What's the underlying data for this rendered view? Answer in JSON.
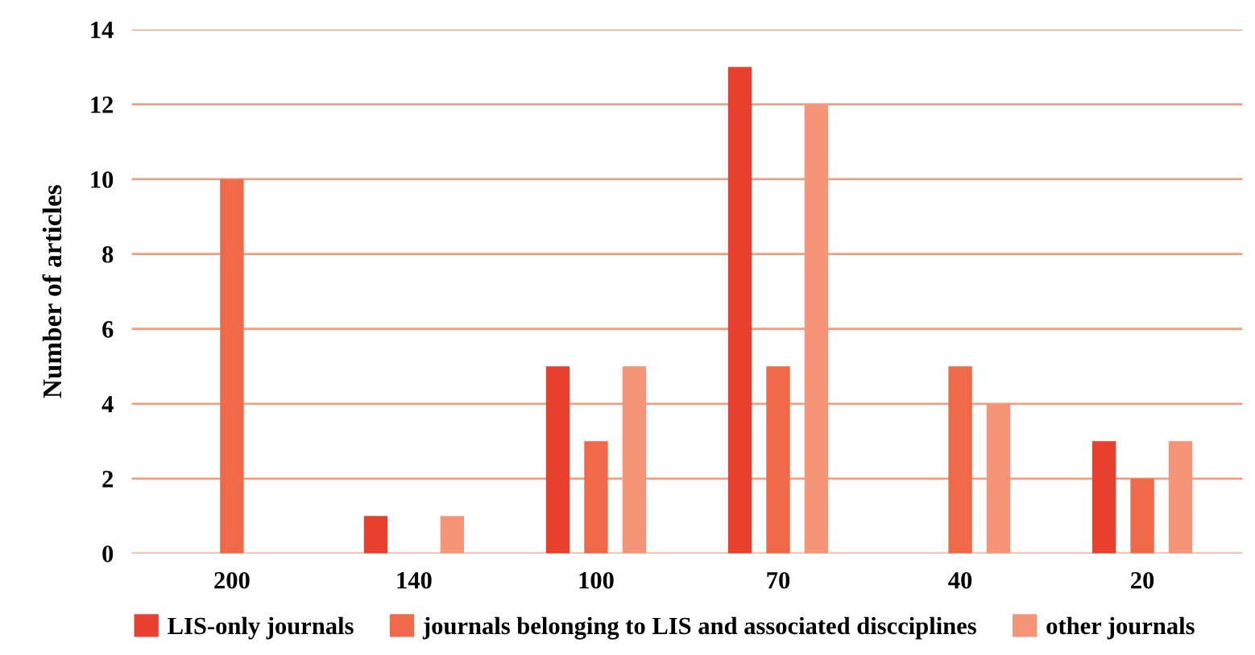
{
  "chart_data": {
    "type": "bar",
    "ylabel": "Number of articles",
    "categories": [
      "200",
      "140",
      "100",
      "70",
      "40",
      "20"
    ],
    "series": [
      {
        "name": "LIS-only journals",
        "color": "#e8402f",
        "values": [
          0,
          1,
          5,
          13,
          0,
          3
        ]
      },
      {
        "name": "journals belonging to LIS and associated discciplines",
        "color": "#f06a4a",
        "values": [
          10,
          0,
          3,
          5,
          5,
          2
        ]
      },
      {
        "name": "other journals",
        "color": "#f59476",
        "values": [
          0,
          1,
          5,
          12,
          4,
          3
        ]
      }
    ],
    "ylim": [
      0,
      14
    ],
    "yticks": [
      0,
      2,
      4,
      6,
      8,
      10,
      12,
      14
    ],
    "grid": "y",
    "legend": "bottom"
  }
}
